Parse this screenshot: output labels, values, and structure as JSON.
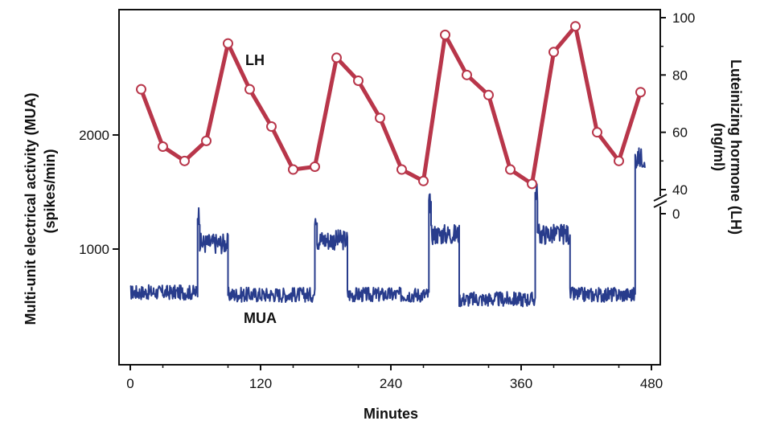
{
  "chart_data": {
    "type": "line",
    "xlabel": "Minutes",
    "x_ticks": [
      0,
      120,
      240,
      360,
      480
    ],
    "xlim": [
      0,
      480
    ],
    "left_axis": {
      "label_line1": "Multi-unit electrical activity (MUA)",
      "label_line2": "(spikes/min)",
      "ticks": [
        1000,
        2000
      ],
      "range": [
        0,
        3000
      ]
    },
    "right_axis": {
      "label_line1": "Luteinizing hormone (LH)",
      "label_line2": "(ng/ml)",
      "ticks_upper": [
        40,
        60,
        80,
        100
      ],
      "tick_zero": 0,
      "upper_range": [
        40,
        100
      ],
      "axis_break": true
    },
    "series": [
      {
        "name": "LH",
        "color": "#b8364a",
        "axis": "right",
        "marker": "open-circle",
        "x": [
          10,
          30,
          50,
          70,
          90,
          110,
          130,
          150,
          170,
          190,
          210,
          230,
          250,
          270,
          290,
          310,
          330,
          350,
          370,
          390,
          410,
          430,
          450,
          470
        ],
        "y": [
          75,
          55,
          50,
          57,
          91,
          75,
          62,
          47,
          48,
          86,
          78,
          65,
          47,
          43,
          94,
          80,
          73,
          47,
          42,
          88,
          97,
          60,
          50,
          74
        ]
      },
      {
        "name": "MUA",
        "color": "#283c8c",
        "axis": "left",
        "baseline": 620,
        "segments": [
          {
            "x": [
              0,
              62
            ],
            "level": 620
          },
          {
            "x": [
              62,
              64
            ],
            "level": 1300
          },
          {
            "x": [
              64,
              90
            ],
            "level": 1050
          },
          {
            "x": [
              90,
              170
            ],
            "level": 600
          },
          {
            "x": [
              170,
              172
            ],
            "level": 1300
          },
          {
            "x": [
              172,
              200
            ],
            "level": 1080
          },
          {
            "x": [
              200,
              275
            ],
            "level": 600
          },
          {
            "x": [
              275,
              277
            ],
            "level": 1400
          },
          {
            "x": [
              277,
              303
            ],
            "level": 1130
          },
          {
            "x": [
              303,
              373
            ],
            "level": 560
          },
          {
            "x": [
              373,
              375
            ],
            "level": 1500
          },
          {
            "x": [
              375,
              405
            ],
            "level": 1130
          },
          {
            "x": [
              405,
              465
            ],
            "level": 600
          },
          {
            "x": [
              465,
              474
            ],
            "level": 1800
          }
        ]
      }
    ]
  }
}
